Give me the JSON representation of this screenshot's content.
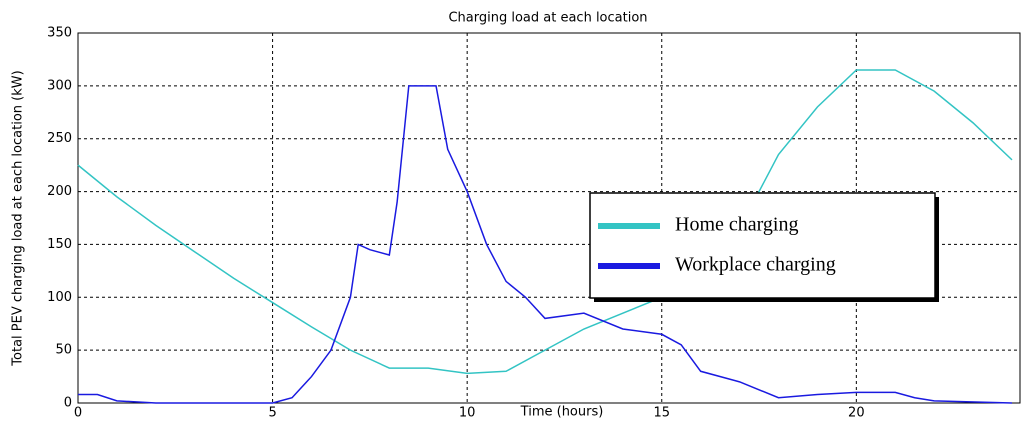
{
  "chart_data": {
    "type": "line",
    "title": "Charging load at each location",
    "x_label": "Time (hours)",
    "y_label": "Total PEV charging load at each location (kW)",
    "xlim": [
      0,
      24
    ],
    "xticks": [
      0,
      5,
      10,
      15,
      20
    ],
    "ylim": [
      0,
      350
    ],
    "yticks": [
      0,
      50,
      100,
      150,
      200,
      250,
      300,
      350
    ],
    "grid": true,
    "legend": "center-right",
    "series": [
      {
        "name": "Home charging",
        "color": "#33c4c4",
        "x": [
          0,
          1,
          2,
          3,
          4,
          5,
          6,
          7,
          8,
          9,
          10,
          11,
          12,
          13,
          14,
          15,
          16,
          17,
          17.5,
          18,
          19,
          20,
          21,
          22,
          23,
          24
        ],
        "values": [
          225,
          195,
          168,
          143,
          118,
          95,
          72,
          50,
          33,
          33,
          28,
          30,
          50,
          70,
          85,
          100,
          120,
          160,
          200,
          235,
          280,
          315,
          315,
          295,
          265,
          230
        ]
      },
      {
        "name": "Workplace charging",
        "color": "#1a1ae0",
        "x": [
          0,
          0.5,
          1,
          2,
          5,
          5.5,
          6,
          6.5,
          7,
          7.2,
          7.5,
          8,
          8.2,
          8.5,
          9,
          9.2,
          9.5,
          10,
          10.5,
          11,
          11.5,
          12,
          13,
          14,
          15,
          15.5,
          16,
          17,
          18,
          19,
          20,
          21,
          21.5,
          22,
          24
        ],
        "values": [
          8,
          8,
          2,
          0,
          0,
          5,
          25,
          50,
          100,
          150,
          145,
          140,
          190,
          300,
          300,
          300,
          240,
          200,
          150,
          115,
          100,
          80,
          85,
          70,
          65,
          55,
          30,
          20,
          5,
          8,
          10,
          10,
          5,
          2,
          0
        ]
      }
    ]
  }
}
